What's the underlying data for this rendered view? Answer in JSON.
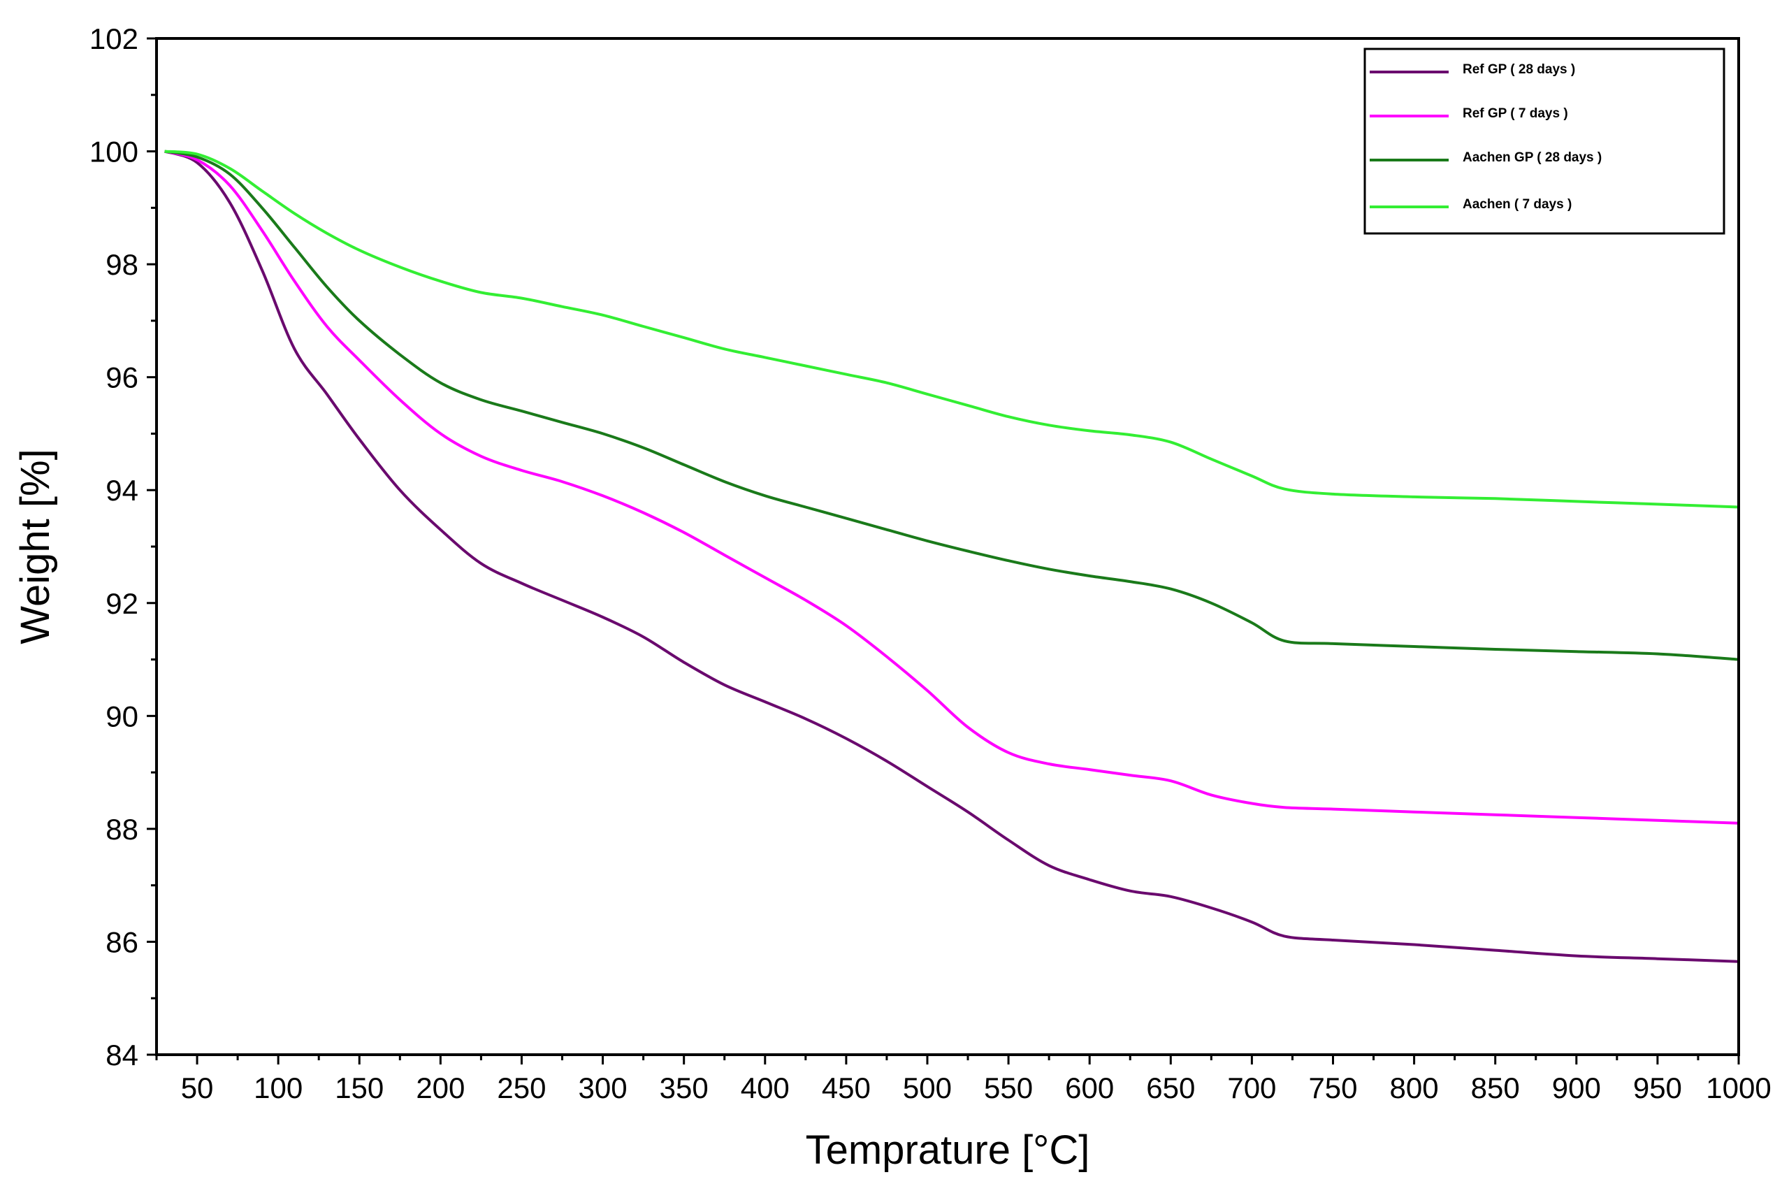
{
  "chart_data": {
    "type": "line",
    "title": "",
    "xlabel": "Temprature [°C]",
    "ylabel": "Weight [%]",
    "xlim": [
      25,
      1000
    ],
    "ylim": [
      84,
      102
    ],
    "xticks": [
      50,
      100,
      150,
      200,
      250,
      300,
      350,
      400,
      450,
      500,
      550,
      600,
      650,
      700,
      750,
      800,
      850,
      900,
      950,
      1000
    ],
    "yticks": [
      84,
      86,
      88,
      90,
      92,
      94,
      96,
      98,
      100,
      102
    ],
    "legend_position": "top-right",
    "grid": false,
    "series": [
      {
        "name": "Ref GP ( 28 days )",
        "color": "#6a0a6e",
        "x": [
          30,
          50,
          70,
          90,
          110,
          130,
          150,
          175,
          200,
          225,
          250,
          275,
          300,
          325,
          350,
          375,
          400,
          425,
          450,
          475,
          500,
          525,
          550,
          575,
          600,
          625,
          650,
          675,
          700,
          720,
          750,
          800,
          850,
          900,
          950,
          1000
        ],
        "y": [
          100.0,
          99.8,
          99.1,
          97.9,
          96.5,
          95.7,
          94.9,
          94.0,
          93.3,
          92.7,
          92.35,
          92.05,
          91.75,
          91.4,
          90.95,
          90.55,
          90.25,
          89.95,
          89.6,
          89.2,
          88.75,
          88.3,
          87.8,
          87.35,
          87.1,
          86.9,
          86.8,
          86.6,
          86.35,
          86.1,
          86.03,
          85.95,
          85.85,
          85.75,
          85.7,
          85.65
        ]
      },
      {
        "name": "Ref GP ( 7 days )",
        "color": "#ff00ff",
        "x": [
          30,
          50,
          70,
          90,
          110,
          130,
          150,
          175,
          200,
          225,
          250,
          275,
          300,
          325,
          350,
          375,
          400,
          425,
          450,
          475,
          500,
          525,
          550,
          575,
          600,
          625,
          650,
          675,
          700,
          720,
          750,
          800,
          850,
          900,
          950,
          1000
        ],
        "y": [
          100.0,
          99.85,
          99.4,
          98.6,
          97.7,
          96.9,
          96.3,
          95.6,
          95.0,
          94.6,
          94.35,
          94.15,
          93.9,
          93.6,
          93.25,
          92.85,
          92.45,
          92.05,
          91.6,
          91.05,
          90.45,
          89.8,
          89.35,
          89.15,
          89.05,
          88.95,
          88.85,
          88.6,
          88.45,
          88.38,
          88.35,
          88.3,
          88.25,
          88.2,
          88.15,
          88.1
        ]
      },
      {
        "name": "Aachen GP ( 28 days )",
        "color": "#1a7a1a",
        "x": [
          30,
          50,
          70,
          90,
          110,
          130,
          150,
          175,
          200,
          225,
          250,
          275,
          300,
          325,
          350,
          375,
          400,
          425,
          450,
          475,
          500,
          525,
          550,
          575,
          600,
          625,
          650,
          675,
          700,
          720,
          750,
          800,
          850,
          900,
          950,
          1000
        ],
        "y": [
          100.0,
          99.9,
          99.6,
          99.0,
          98.3,
          97.6,
          97.0,
          96.4,
          95.9,
          95.6,
          95.4,
          95.2,
          95.0,
          94.75,
          94.45,
          94.15,
          93.9,
          93.7,
          93.5,
          93.3,
          93.1,
          92.92,
          92.75,
          92.6,
          92.48,
          92.38,
          92.25,
          92.0,
          91.65,
          91.33,
          91.28,
          91.23,
          91.18,
          91.14,
          91.1,
          91.0
        ]
      },
      {
        "name": "Aachen ( 7 days )",
        "color": "#33ee33",
        "x": [
          30,
          50,
          70,
          90,
          110,
          130,
          150,
          175,
          200,
          225,
          250,
          275,
          300,
          325,
          350,
          375,
          400,
          425,
          450,
          475,
          500,
          525,
          550,
          575,
          600,
          625,
          650,
          675,
          700,
          720,
          750,
          800,
          850,
          900,
          950,
          1000
        ],
        "y": [
          100.0,
          99.95,
          99.7,
          99.3,
          98.9,
          98.55,
          98.25,
          97.95,
          97.7,
          97.5,
          97.4,
          97.25,
          97.1,
          96.9,
          96.7,
          96.5,
          96.35,
          96.2,
          96.05,
          95.9,
          95.7,
          95.5,
          95.3,
          95.15,
          95.05,
          94.98,
          94.85,
          94.55,
          94.25,
          94.02,
          93.93,
          93.88,
          93.85,
          93.8,
          93.75,
          93.7
        ]
      }
    ]
  }
}
